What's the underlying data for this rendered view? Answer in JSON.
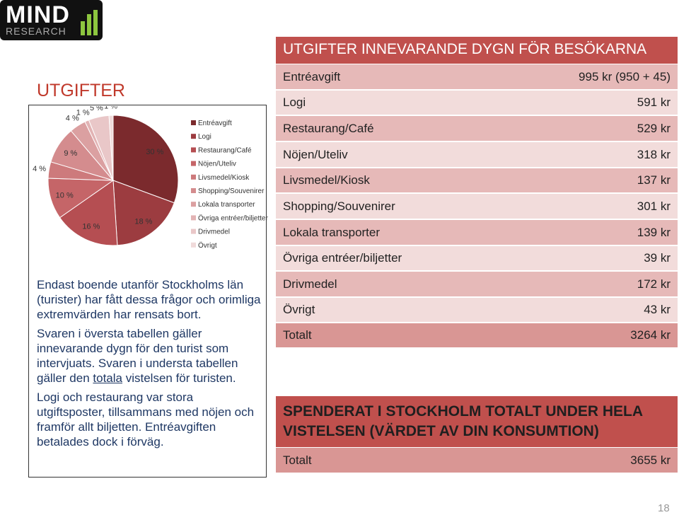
{
  "logo": {
    "name": "MIND",
    "sub": "RESEARCH"
  },
  "title": "UTGIFTER",
  "chart_data": {
    "type": "pie",
    "categories": [
      "Entréavgift",
      "Logi",
      "Restaurang/Café",
      "Nöjen/Uteliv",
      "Livsmedel/Kiosk",
      "Shopping/Souvenirer",
      "Lokala transporter",
      "Övriga entréer/biljetter",
      "Drivmedel",
      "Övrigt"
    ],
    "values": [
      30,
      18,
      16,
      10,
      4,
      9,
      4,
      1,
      5,
      1
    ],
    "value_labels": [
      "30 %",
      "18 %",
      "16 %",
      "10 %",
      "4 %",
      "9 %",
      "4 %",
      "1 %",
      "5 %",
      "1 %"
    ],
    "colors": [
      "#7b2a2d",
      "#9c3c40",
      "#b54e52",
      "#c56568",
      "#cd7a7c",
      "#d48c8e",
      "#dba0a1",
      "#e2b3b4",
      "#e9c7c8",
      "#f0dada"
    ],
    "legend": "right"
  },
  "notes": [
    [
      "Endast boende utanför Stockholms län (turister) har fått dessa frågor och orimliga extremvärden har rensats bort."
    ],
    [
      "Svaren i översta tabellen gäller innevarande dygn för den turist som intervjuats. Svaren i understa tabellen gäller den ",
      "totala",
      " vistelsen för turisten."
    ],
    [
      "Logi och restaurang var stora utgiftsposter, tillsammans med nöjen och framför allt biljetten. Entréavgiften betalades dock i förväg."
    ]
  ],
  "table": {
    "header": "UTGIFTER INNEVARANDE DYGN FÖR BESÖKARNA",
    "rows": [
      [
        "Entréavgift",
        "995 kr (950 + 45)"
      ],
      [
        "Logi",
        "591 kr"
      ],
      [
        "Restaurang/Café",
        "529 kr"
      ],
      [
        "Nöjen/Uteliv",
        "318 kr"
      ],
      [
        "Livsmedel/Kiosk",
        "137 kr"
      ],
      [
        "Shopping/Souvenirer",
        "301 kr"
      ],
      [
        "Lokala transporter",
        "139 kr"
      ],
      [
        "Övriga entréer/biljetter",
        "39 kr"
      ],
      [
        "Drivmedel",
        "172 kr"
      ],
      [
        "Övrigt",
        "43 kr"
      ],
      [
        "Totalt",
        "3264 kr"
      ]
    ]
  },
  "table2": {
    "header": "SPENDERAT I STOCKHOLM TOTALT UNDER HELA VISTELSEN (VÄRDET AV DIN KONSUMTION)",
    "rows": [
      [
        "Totalt",
        "3655 kr"
      ]
    ]
  },
  "page_number": "18"
}
